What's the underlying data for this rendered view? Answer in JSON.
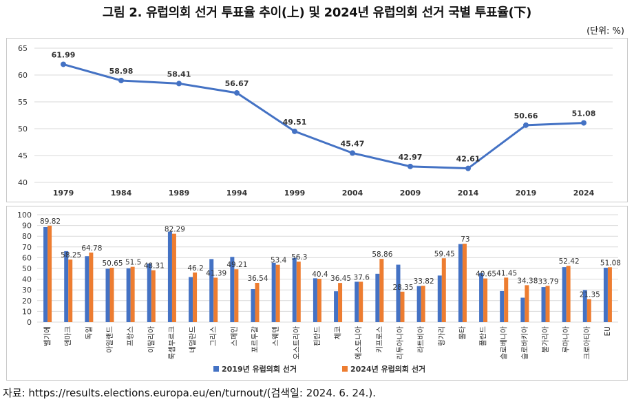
{
  "title": "그림 2. 유럽의회 선거 투표율 추이(上) 및 2024년 유럽의회 선거 국별 투표율(下)",
  "unit": "(단위: %)",
  "source": "자료: https://results.elections.europa.eu/en/turnout/(검색일: 2024. 6. 24.).",
  "colors": {
    "line": "#4472c4",
    "bar2019": "#4472c4",
    "bar2024": "#ed7d31",
    "grid": "#d9d9d9"
  },
  "chart_data": [
    {
      "type": "line",
      "title": "",
      "x": [
        "1979",
        "1984",
        "1989",
        "1994",
        "1999",
        "2004",
        "2009",
        "2014",
        "2019",
        "2024"
      ],
      "values": [
        61.99,
        58.98,
        58.41,
        56.67,
        49.51,
        45.47,
        42.97,
        42.61,
        50.66,
        51.08
      ],
      "data_labels": [
        "61.99",
        "58.98",
        "58.41",
        "56.67",
        "49.51",
        "45.47",
        "42.97",
        "42.61",
        "50.66",
        "51.08"
      ],
      "ylim": [
        40,
        65
      ],
      "yticks": [
        "40",
        "45",
        "50",
        "55",
        "60",
        "65"
      ],
      "grid": true
    },
    {
      "type": "bar",
      "categories": [
        "벨기에",
        "덴마크",
        "독일",
        "아일랜드",
        "프랑스",
        "이탈리아",
        "룩셈부르크",
        "네덜란드",
        "그리스",
        "스페인",
        "포르투갈",
        "스웨덴",
        "오스트리아",
        "핀란드",
        "체코",
        "에스토니아",
        "키프로스",
        "리투아니아",
        "라트비아",
        "헝가리",
        "몰타",
        "폴란드",
        "슬로베니아",
        "슬로바키아",
        "불가리아",
        "루마니아",
        "크로아티아",
        "EU"
      ],
      "series": [
        {
          "name": "2019년 유럽의회 선거",
          "values": [
            88.47,
            66.08,
            61.38,
            49.7,
            50.12,
            54.5,
            84.24,
            41.93,
            58.69,
            60.73,
            30.75,
            55.27,
            59.8,
            40.8,
            28.72,
            37.6,
            44.99,
            53.48,
            33.53,
            43.36,
            72.7,
            45.68,
            28.89,
            22.74,
            32.64,
            51.2,
            29.85,
            50.66
          ]
        },
        {
          "name": "2024년 유럽의회 선거",
          "values": [
            89.82,
            58.25,
            64.78,
            50.65,
            51.5,
            48.31,
            82.29,
            46.2,
            41.39,
            49.21,
            36.54,
            53.4,
            56.3,
            40.4,
            36.45,
            37.6,
            58.86,
            28.35,
            33.82,
            59.45,
            73,
            40.65,
            41.45,
            34.38,
            33.79,
            52.42,
            21.35,
            51.08
          ]
        }
      ],
      "data_labels": [
        "89.82",
        "58.25",
        "64.78",
        "50.65",
        "51.5",
        "48.31",
        "82.29",
        "46.2",
        "41.39",
        "49.21",
        "36.54",
        "53.4",
        "56.3",
        "40.4",
        "36.45",
        "37.6",
        "58.86",
        "28.35",
        "33.82",
        "59.45",
        "73",
        "40.65",
        "41.45",
        "34.38",
        "33.79",
        "52.42",
        "21.35",
        "51.08"
      ],
      "ylim": [
        0,
        100
      ],
      "yticks": [
        "0",
        "10",
        "20",
        "30",
        "40",
        "50",
        "60",
        "70",
        "80",
        "90",
        "100"
      ],
      "legend": [
        "2019년 유럽의회 선거",
        "2024년 유럽의회 선거"
      ],
      "legend_position": "bottom",
      "grid": true
    }
  ]
}
